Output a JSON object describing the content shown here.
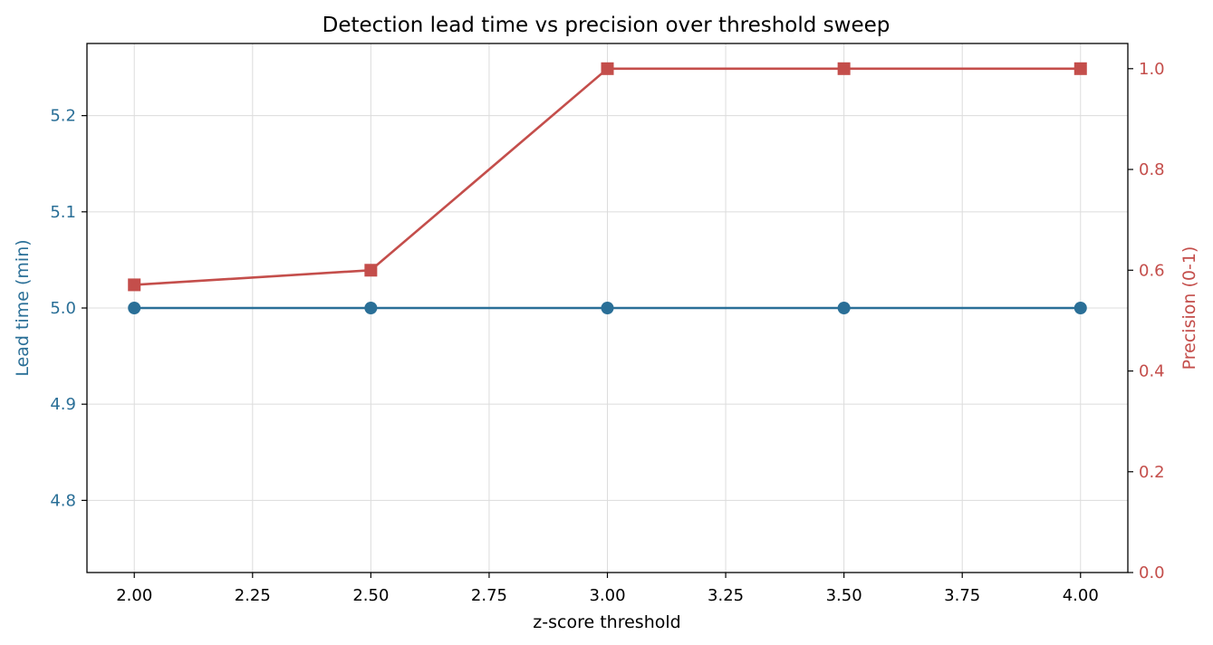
{
  "chart_data": {
    "type": "line",
    "title": "Detection lead time vs precision over threshold sweep",
    "xlabel": "z-score threshold",
    "ylabel_left": "Lead time (min)",
    "ylabel_right": "Precision (0-1)",
    "x": [
      2.0,
      2.5,
      3.0,
      3.5,
      4.0
    ],
    "xlim": [
      1.9,
      4.1
    ],
    "ylim_left": [
      4.725,
      5.275
    ],
    "ylim_right": [
      0,
      1.05
    ],
    "x_ticks": [
      2.0,
      2.25,
      2.5,
      2.75,
      3.0,
      3.25,
      3.5,
      3.75,
      4.0
    ],
    "x_tick_labels": [
      "2.00",
      "2.25",
      "2.50",
      "2.75",
      "3.00",
      "3.25",
      "3.50",
      "3.75",
      "4.00"
    ],
    "y_left_ticks": [
      4.8,
      4.9,
      5.0,
      5.1,
      5.2
    ],
    "y_left_tick_labels": [
      "4.8",
      "4.9",
      "5.0",
      "5.1",
      "5.2"
    ],
    "y_right_ticks": [
      0.0,
      0.2,
      0.4,
      0.6,
      0.8,
      1.0
    ],
    "y_right_tick_labels": [
      "0.0",
      "0.2",
      "0.4",
      "0.6",
      "0.8",
      "1.0"
    ],
    "grid": true,
    "series": [
      {
        "axis": "left",
        "values": [
          5.0,
          5.0,
          5.0,
          5.0,
          5.0
        ],
        "color": "#2a6f97",
        "marker": "circle"
      },
      {
        "axis": "right",
        "values": [
          0.571,
          0.6,
          1.0,
          1.0,
          1.0
        ],
        "color": "#c44e4b",
        "marker": "square"
      }
    ]
  }
}
